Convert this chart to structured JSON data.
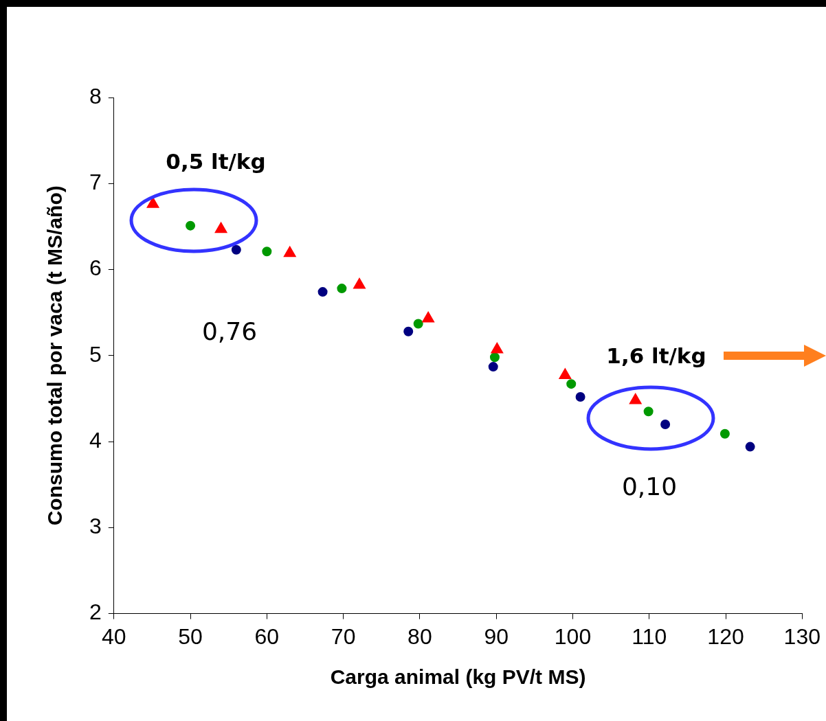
{
  "chart_data": {
    "type": "scatter",
    "xlabel": "Carga animal (kg PV/t MS)",
    "ylabel": "Consumo total por vaca (t MS/año)",
    "xlim": [
      40,
      130
    ],
    "xticks": [
      40,
      50,
      60,
      70,
      80,
      90,
      100,
      110,
      120,
      130
    ],
    "ylim": [
      2,
      8
    ],
    "yticks": [
      2,
      3,
      4,
      5,
      6,
      7,
      8
    ],
    "grid": false,
    "legend": false,
    "series": [
      {
        "color": "#ff0000",
        "marker": "triangle",
        "x": [
          45.1,
          54.0,
          63.0,
          72.1,
          81.1,
          90.1,
          99.0,
          108.2
        ],
        "values": [
          6.76,
          6.47,
          6.19,
          5.82,
          5.43,
          5.07,
          4.77,
          4.48
        ]
      },
      {
        "color": "#009900",
        "marker": "circle",
        "x": [
          50.0,
          60.0,
          69.8,
          79.8,
          89.8,
          99.8,
          109.9,
          119.9
        ],
        "values": [
          6.51,
          6.21,
          5.78,
          5.37,
          4.98,
          4.67,
          4.35,
          4.09
        ]
      },
      {
        "color": "#000080",
        "marker": "circle",
        "x": [
          56.0,
          67.3,
          78.5,
          89.6,
          101.0,
          112.1,
          123.2
        ],
        "values": [
          6.23,
          5.74,
          5.28,
          4.87,
          4.52,
          4.2,
          3.94
        ]
      }
    ],
    "annotations": [
      "0,5 lt/kg",
      "0,76",
      "1,6 lt/kg",
      "0,10"
    ]
  }
}
